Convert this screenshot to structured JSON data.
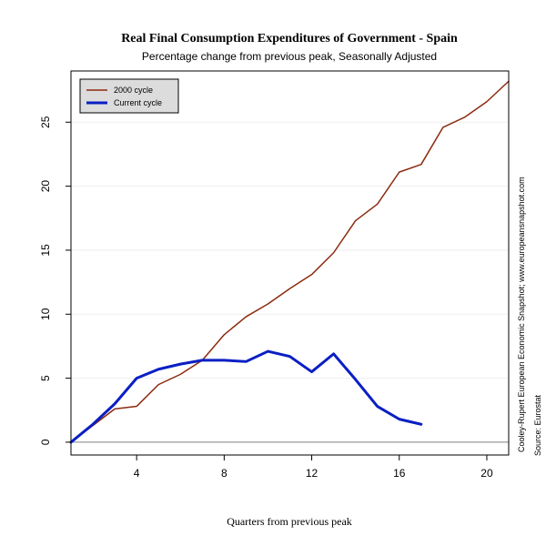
{
  "chart_data": {
    "type": "line",
    "title": "Real Final Consumption Expenditures of Government - Spain",
    "subtitle": "Percentage change from previous peak, Seasonally Adjusted",
    "xlabel": "Quarters from previous peak",
    "ylabel": "",
    "xlim": [
      1,
      21
    ],
    "ylim": [
      -1,
      29
    ],
    "x_ticks": [
      4,
      8,
      12,
      16,
      20
    ],
    "y_ticks": [
      0,
      5,
      10,
      15,
      20,
      25
    ],
    "x_tick_labels": [
      "4",
      "8",
      "12",
      "16",
      "20"
    ],
    "y_tick_labels": [
      "0",
      "5",
      "10",
      "15",
      "20",
      "25"
    ],
    "grid": true,
    "zero_line": true,
    "legend_position": "top-left",
    "series": [
      {
        "name": "2000 cycle",
        "color": "#8B2A0E",
        "x": [
          1,
          2,
          3,
          4,
          5,
          6,
          7,
          8,
          9,
          10,
          11,
          12,
          13,
          14,
          15,
          16,
          17,
          18,
          19,
          20,
          21
        ],
        "values": [
          0.0,
          1.3,
          2.6,
          2.8,
          4.5,
          5.3,
          6.4,
          8.4,
          9.8,
          10.8,
          12.0,
          13.1,
          14.8,
          17.3,
          18.6,
          21.1,
          21.7,
          24.6,
          25.4,
          26.6,
          28.2
        ]
      },
      {
        "name": "Current cycle",
        "color": "#0A1FC4",
        "x": [
          1,
          2,
          3,
          4,
          5,
          6,
          7,
          8,
          9,
          10,
          11,
          12,
          13,
          14,
          15,
          16,
          17
        ],
        "values": [
          0.0,
          1.4,
          3.0,
          5.0,
          5.7,
          6.1,
          6.4,
          6.4,
          6.3,
          7.1,
          6.7,
          5.5,
          6.9,
          4.9,
          2.8,
          1.8,
          1.4
        ]
      }
    ],
    "credits": {
      "line1": "Cooley-Rupert European Economic Snapshot; www.europeansnapshot.com",
      "line2": "Source: Eurostat"
    }
  }
}
